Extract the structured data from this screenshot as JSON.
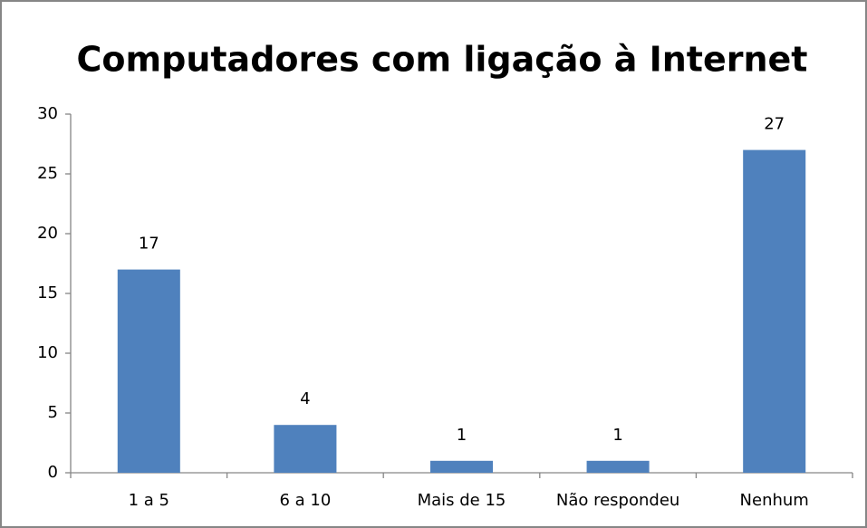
{
  "chart_data": {
    "type": "bar",
    "title": "Computadores com ligação à Internet",
    "categories": [
      "1 a 5",
      "6 a 10",
      "Mais de 15",
      "Não respondeu",
      "Nenhum"
    ],
    "values": [
      17,
      4,
      1,
      1,
      27
    ],
    "color": "#4f81bd",
    "ylim": [
      0,
      30
    ],
    "yticks": [
      0,
      5,
      10,
      15,
      20,
      25,
      30
    ],
    "grid": false
  }
}
